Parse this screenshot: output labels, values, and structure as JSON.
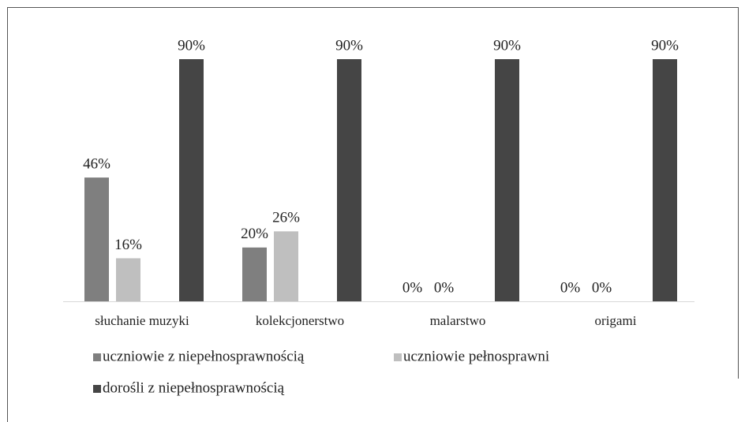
{
  "chart_data": {
    "type": "bar",
    "categories": [
      "słuchanie muzyki",
      "kolekcjonerstwo",
      "malarstwo",
      "origami"
    ],
    "series": [
      {
        "name": "uczniowie z niepełnosprawnością",
        "color": "#7f7f7f",
        "values": [
          46,
          20,
          0,
          0
        ],
        "value_labels": [
          "46%",
          "20%",
          "0%",
          "0%"
        ]
      },
      {
        "name": "uczniowie pełnosprawni",
        "color": "#bfbfbf",
        "values": [
          16,
          26,
          0,
          0
        ],
        "value_labels": [
          "16%",
          "26%",
          "0%",
          "0%"
        ]
      },
      {
        "name": "dorośli z niepełnosprawnością",
        "color": "#454545",
        "values": [
          90,
          90,
          90,
          90
        ],
        "value_labels": [
          "90%",
          "90%",
          "90%",
          "90%"
        ]
      }
    ],
    "legend": "bottom"
  }
}
